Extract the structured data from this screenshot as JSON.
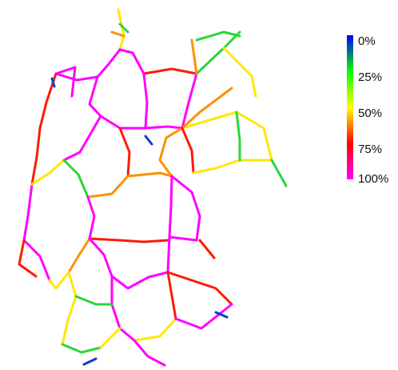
{
  "legend": {
    "labels": [
      "0%",
      "25%",
      "50%",
      "75%",
      "100%"
    ],
    "colors": [
      "#0000ff",
      "#00ff00",
      "#ffff00",
      "#ff0000",
      "#ff00ff"
    ]
  },
  "map": {
    "line_colors": {
      "blue": "#0b3bd1",
      "green": "#2bd63a",
      "yellow": "#ffe600",
      "orange": "#ff9000",
      "red": "#ff1a00",
      "magenta": "#ff00ff"
    }
  }
}
